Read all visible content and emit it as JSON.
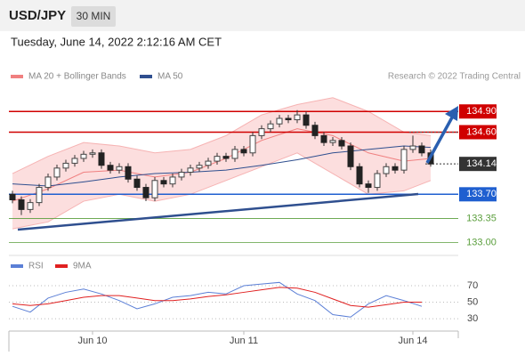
{
  "chart_data": {
    "type": "candlestick",
    "symbol": "USD/JPY",
    "timeframe": "30 MIN",
    "timestamp": "Tuesday, June 14, 2022 2:12:16 AM CET",
    "copyright": "Research © 2022 Trading Central",
    "legend": [
      {
        "name": "MA 20 + Bollinger Bands",
        "color": "#f08080"
      },
      {
        "name": "MA 50",
        "color": "#2f4f8f"
      }
    ],
    "open": [
      133.7,
      133.62,
      133.48,
      133.58,
      133.8,
      133.95,
      134.08,
      134.15,
      134.22,
      134.28,
      134.3,
      134.12,
      134.05,
      134.1,
      133.92,
      133.8,
      133.65,
      133.9,
      133.85,
      133.95,
      134.02,
      134.08,
      134.12,
      134.18,
      134.25,
      134.22,
      134.35,
      134.3,
      134.55,
      134.65,
      134.72,
      134.8,
      134.78,
      134.85,
      134.7,
      134.55,
      134.45,
      134.48,
      134.4,
      134.1,
      133.85,
      133.8,
      134.0,
      134.1,
      134.05,
      134.35,
      134.4,
      134.3
    ],
    "high": [
      133.75,
      133.67,
      133.63,
      133.85,
      134.0,
      134.13,
      134.2,
      134.27,
      134.33,
      134.35,
      134.35,
      134.17,
      134.15,
      134.15,
      133.97,
      133.85,
      133.95,
      133.95,
      134.0,
      134.07,
      134.13,
      134.17,
      134.23,
      134.3,
      134.3,
      134.4,
      134.4,
      134.6,
      134.7,
      134.77,
      134.85,
      134.85,
      134.92,
      134.9,
      134.75,
      134.6,
      134.53,
      134.53,
      134.45,
      134.15,
      133.9,
      134.05,
      134.15,
      134.15,
      134.4,
      134.55,
      134.45,
      134.35
    ],
    "low": [
      133.57,
      133.4,
      133.43,
      133.53,
      133.75,
      133.9,
      134.03,
      134.1,
      134.17,
      134.23,
      134.07,
      134.0,
      134.0,
      133.87,
      133.75,
      133.6,
      133.6,
      133.8,
      133.8,
      133.9,
      133.97,
      134.03,
      134.07,
      134.13,
      134.17,
      134.17,
      134.25,
      134.25,
      134.5,
      134.6,
      134.67,
      134.73,
      134.73,
      134.65,
      134.5,
      134.4,
      134.4,
      134.35,
      134.05,
      133.8,
      133.72,
      133.75,
      133.95,
      134.0,
      134.0,
      134.3,
      134.25,
      134.1
    ],
    "close": [
      133.62,
      133.48,
      133.58,
      133.8,
      133.95,
      134.08,
      134.15,
      134.22,
      134.28,
      134.3,
      134.12,
      134.05,
      134.1,
      133.92,
      133.8,
      133.65,
      133.9,
      133.85,
      133.95,
      134.02,
      134.08,
      134.12,
      134.18,
      134.25,
      134.22,
      134.35,
      134.3,
      134.55,
      134.65,
      134.72,
      134.8,
      134.78,
      134.85,
      134.7,
      134.55,
      134.45,
      134.48,
      134.4,
      134.1,
      133.85,
      133.8,
      134.0,
      134.1,
      134.05,
      134.35,
      134.4,
      134.3,
      134.14
    ],
    "up_color": "#444444",
    "down_color": "#222222",
    "overlay_x": [
      0,
      4,
      8,
      12,
      16,
      20,
      24,
      28,
      32,
      36,
      40,
      44,
      47
    ],
    "bb_upper": [
      134.0,
      134.25,
      134.45,
      134.4,
      134.3,
      134.35,
      134.55,
      134.85,
      135.0,
      135.1,
      134.9,
      134.6,
      134.55
    ],
    "bb_lower": [
      133.2,
      133.3,
      133.6,
      133.7,
      133.6,
      133.7,
      133.9,
      134.1,
      134.3,
      134.0,
      133.7,
      133.75,
      133.9
    ],
    "ma20": [
      133.6,
      133.78,
      134.02,
      134.05,
      133.95,
      134.02,
      134.22,
      134.48,
      134.65,
      134.55,
      134.3,
      134.18,
      134.22
    ],
    "ma50": [
      133.85,
      133.82,
      133.88,
      133.95,
      134.0,
      134.02,
      134.05,
      134.12,
      134.2,
      134.3,
      134.35,
      134.4,
      134.38
    ],
    "levels": [
      {
        "value": 134.9,
        "label": "134.90",
        "color": "#d00000",
        "tag": true
      },
      {
        "value": 134.6,
        "label": "134.60",
        "color": "#d00000",
        "tag": true
      },
      {
        "value": 134.14,
        "label": "134.14",
        "color": "#333333",
        "tag": true,
        "current": true
      },
      {
        "value": 133.7,
        "label": "133.70",
        "color": "#1f5fd0",
        "tag": true
      },
      {
        "value": 133.35,
        "label": "133.35",
        "color": "#5a9e3c",
        "tag": false
      },
      {
        "value": 133.0,
        "label": "133.00",
        "color": "#5a9e3c",
        "tag": false
      }
    ],
    "ylim": [
      132.84,
      135.29
    ],
    "xlim": [
      -0.4,
      50.1
    ],
    "xticks": [
      {
        "value": 9,
        "label": "Jun 10"
      },
      {
        "value": 26,
        "label": "Jun 11"
      },
      {
        "value": 45,
        "label": "Jun 14"
      }
    ],
    "rsi": {
      "legend": [
        {
          "name": "RSI",
          "color": "#5b7fd6"
        },
        {
          "name": "9MA",
          "color": "#e02020"
        }
      ],
      "x": [
        0,
        2,
        4,
        6,
        8,
        10,
        12,
        14,
        16,
        18,
        20,
        22,
        24,
        26,
        28,
        30,
        32,
        34,
        36,
        38,
        40,
        42,
        44,
        46
      ],
      "rsi": [
        45,
        38,
        55,
        62,
        66,
        60,
        52,
        42,
        48,
        56,
        58,
        62,
        60,
        70,
        72,
        74,
        60,
        52,
        35,
        32,
        48,
        58,
        52,
        45
      ],
      "ma9": [
        48,
        46,
        48,
        52,
        56,
        58,
        58,
        55,
        52,
        52,
        54,
        57,
        59,
        62,
        65,
        68,
        67,
        62,
        54,
        46,
        44,
        47,
        50,
        50
      ],
      "ylim": [
        15,
        76.5
      ],
      "yticks": [
        70,
        50,
        30
      ]
    }
  }
}
